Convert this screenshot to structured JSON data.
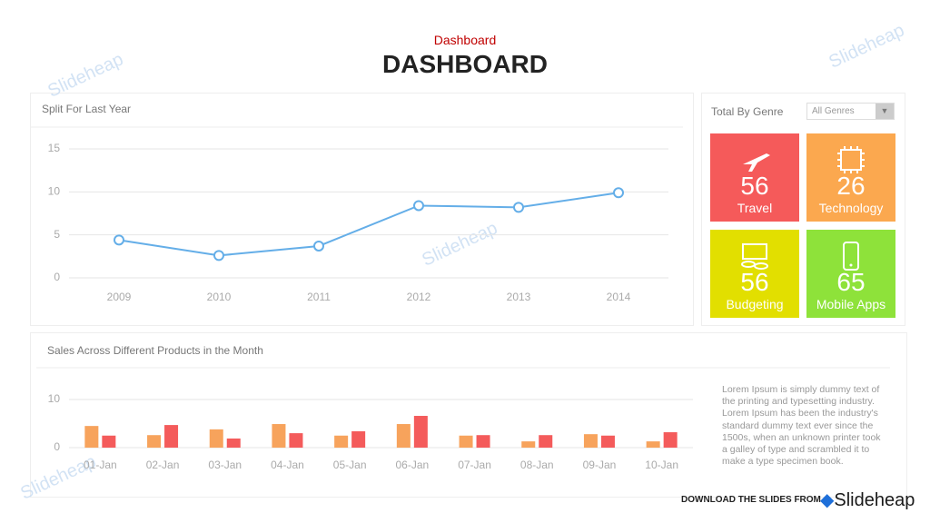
{
  "header": {
    "subtitle": "Dashboard",
    "title": "DASHBOARD"
  },
  "chart_data": [
    {
      "type": "line",
      "title": "Split For Last Year",
      "categories": [
        "2009",
        "2010",
        "2011",
        "2012",
        "2013",
        "2014"
      ],
      "values": [
        4.4,
        2.6,
        3.7,
        8.4,
        8.2,
        9.9
      ],
      "color": "#64aee8",
      "ylim": [
        0,
        15
      ],
      "yticks": [
        0,
        5,
        10,
        15
      ],
      "grid": true
    },
    {
      "type": "bar",
      "title": "Sales Across Different Products in the Month",
      "categories": [
        "01-Jan",
        "02-Jan",
        "03-Jan",
        "04-Jan",
        "05-Jan",
        "06-Jan",
        "07-Jan",
        "08-Jan",
        "09-Jan",
        "10-Jan"
      ],
      "series": [
        {
          "color": "#f7a35c",
          "values": [
            4.5,
            2.6,
            3.8,
            4.9,
            2.5,
            4.9,
            2.5,
            1.3,
            2.8,
            1.3
          ]
        },
        {
          "color": "#f45b5b",
          "values": [
            2.5,
            4.7,
            1.9,
            3.0,
            3.4,
            6.6,
            2.6,
            2.6,
            2.5,
            3.2
          ]
        }
      ],
      "ylim": [
        0,
        10
      ],
      "yticks": [
        0,
        10
      ],
      "grid": true
    }
  ],
  "genre": {
    "title": "Total By Genre",
    "select": "All Genres",
    "tiles": [
      {
        "value": 56,
        "label": "Travel",
        "color": "#f55a5a"
      },
      {
        "value": 26,
        "label": "Technology",
        "color": "#fba84f"
      },
      {
        "value": 56,
        "label": "Budgeting",
        "color": "#e2df00"
      },
      {
        "value": 65,
        "label": "Mobile Apps",
        "color": "#8ee23a"
      }
    ]
  },
  "note": "Lorem Ipsum is simply dummy text of the printing and typesetting industry. Lorem Ipsum has been the industry's standard dummy text ever since the 1500s, when an unknown printer took a galley of type and scrambled it to make a type specimen book.",
  "footer": {
    "download": "DOWNLOAD THE SLIDES FROM",
    "brand": "Slideheap"
  },
  "watermark": "Slideheap"
}
